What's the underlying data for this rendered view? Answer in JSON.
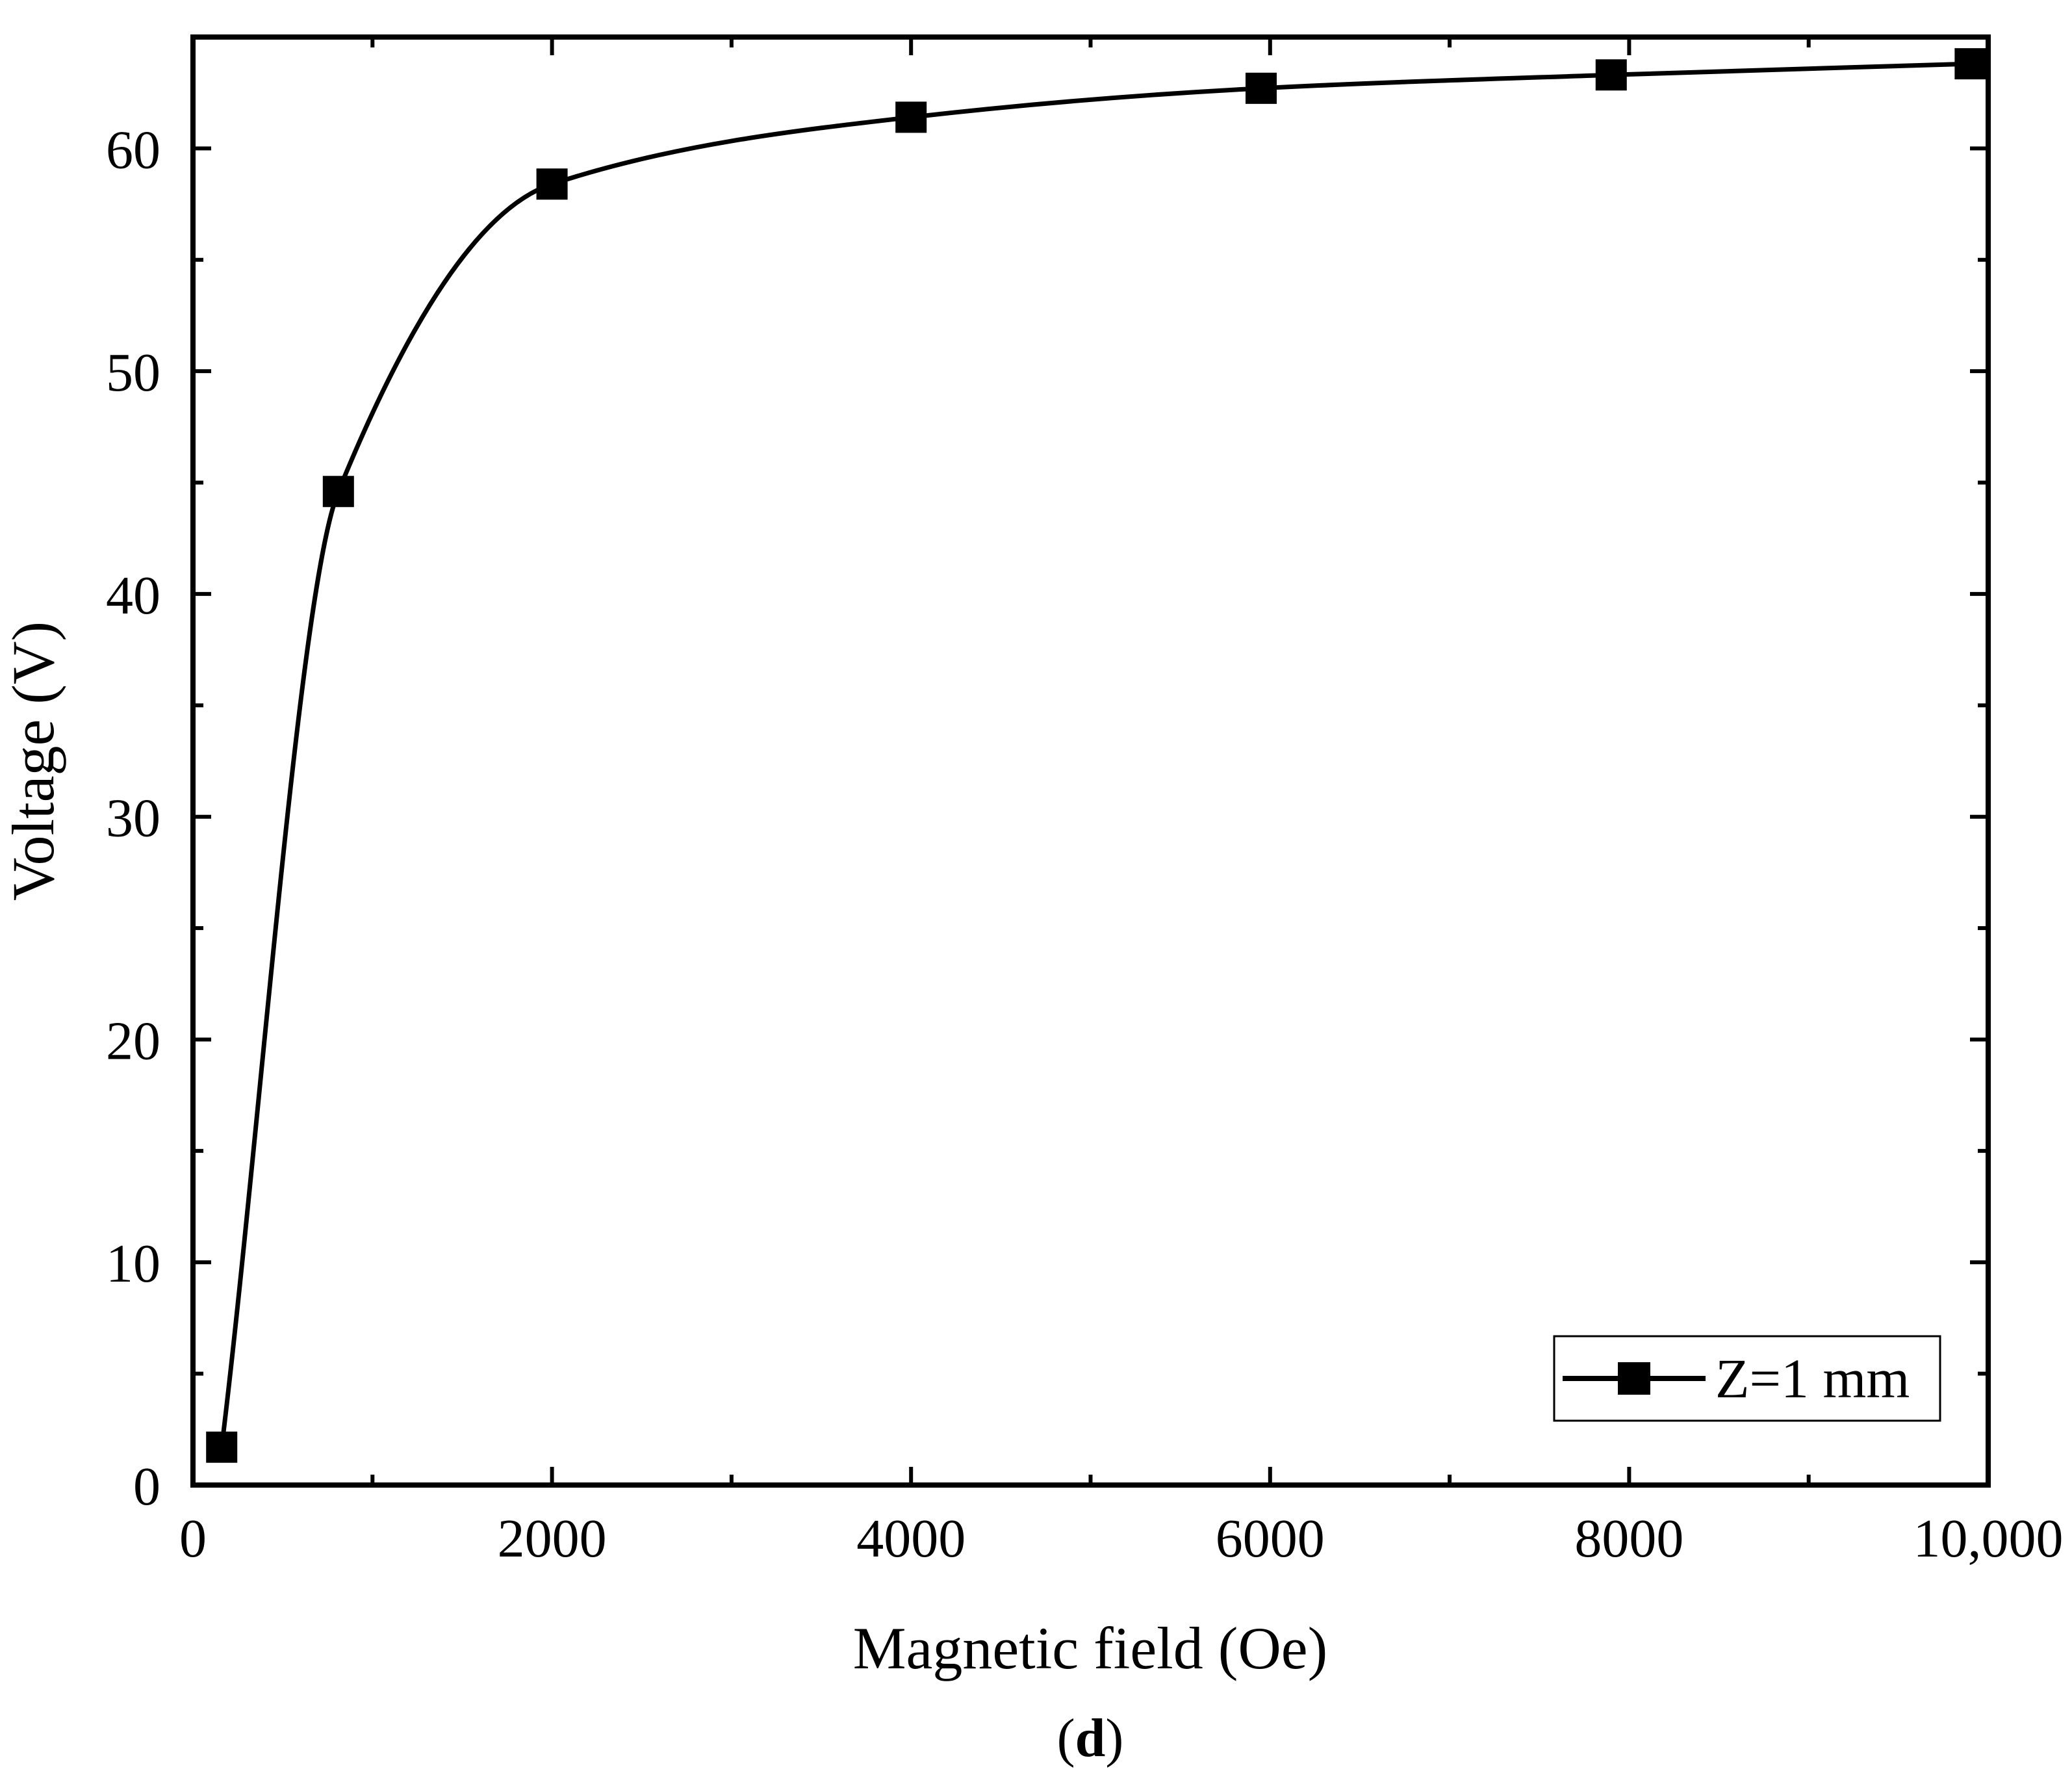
{
  "chart_data": {
    "type": "line",
    "title": "",
    "xlabel": "Magnetic field (Oe)",
    "ylabel": "Voltage (V)",
    "panel_label": "d",
    "xlim": [
      0,
      10000
    ],
    "ylim": [
      0,
      65
    ],
    "x_ticks": [
      {
        "value": 0,
        "label": "0"
      },
      {
        "value": 2000,
        "label": "2000"
      },
      {
        "value": 4000,
        "label": "4000"
      },
      {
        "value": 6000,
        "label": "6000"
      },
      {
        "value": 8000,
        "label": "8000"
      },
      {
        "value": 10000,
        "label": "10,000"
      }
    ],
    "x_minor_ticks": [
      1000,
      3000,
      5000,
      7000,
      9000
    ],
    "y_ticks": [
      {
        "value": 0,
        "label": "0"
      },
      {
        "value": 10,
        "label": "10"
      },
      {
        "value": 20,
        "label": "20"
      },
      {
        "value": 30,
        "label": "30"
      },
      {
        "value": 40,
        "label": "40"
      },
      {
        "value": 50,
        "label": "50"
      },
      {
        "value": 60,
        "label": "60"
      }
    ],
    "y_minor_ticks": [
      5,
      15,
      25,
      35,
      45,
      55
    ],
    "grid": false,
    "legend_position": "bottom-right",
    "series": [
      {
        "name": "Z=1 mm",
        "marker": "square",
        "color": "#000000",
        "x": [
          160,
          810,
          2000,
          4000,
          5950,
          7900,
          9900
        ],
        "y": [
          1.7,
          44.6,
          58.4,
          61.4,
          62.7,
          63.3,
          63.8
        ]
      }
    ]
  }
}
